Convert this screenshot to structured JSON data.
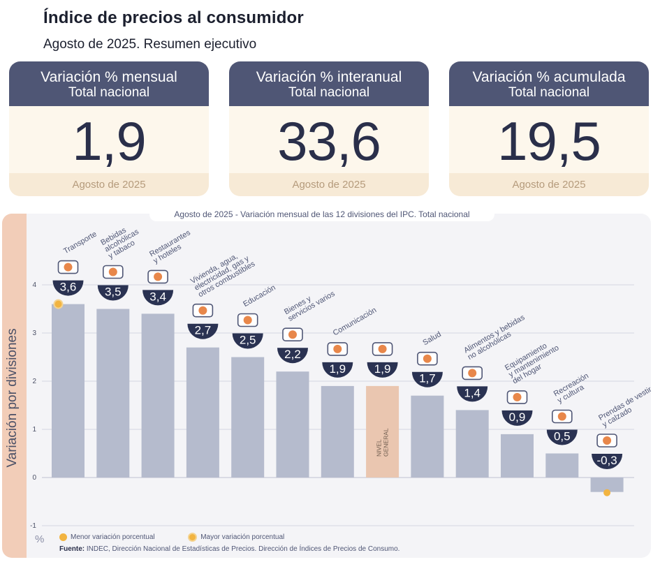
{
  "header": {
    "title": "Índice de precios al consumidor",
    "subtitle": "Agosto de 2025. Resumen ejecutivo"
  },
  "cards": [
    {
      "title": "Variación % mensual",
      "subtitle": "Total nacional",
      "value": "1,9",
      "footer": "Agosto de 2025"
    },
    {
      "title": "Variación % interanual",
      "subtitle": "Total nacional",
      "value": "33,6",
      "footer": "Agosto de 2025"
    },
    {
      "title": "Variación % acumulada",
      "subtitle": "Total nacional",
      "value": "19,5",
      "footer": "Agosto de 2025"
    }
  ],
  "colors": {
    "bar": "#b5bbcd",
    "highlight_bar": "#eac6b0",
    "badge": "#2a3252",
    "dot": "#f2b441",
    "grid": "#c9ccd8",
    "icon": "#e8874a"
  },
  "legend": {
    "min_label": "Menor variación porcentual",
    "max_label": "Mayor variación porcentual"
  },
  "footer": {
    "percent_symbol": "%",
    "source_label": "Fuente:",
    "source_text": "INDEC, Dirección Nacional de Estadísticas de Precios. Dirección de Índices de Precios de Consumo."
  },
  "chart_data": {
    "type": "bar",
    "title": "Agosto de 2025 - Variación mensual de las 12 divisiones del IPC. Total nacional",
    "ylabel": "Variación por divisiones",
    "xlabel": "",
    "ylim": [
      -1,
      4
    ],
    "yticks": [
      -1,
      0,
      1,
      2,
      3,
      4
    ],
    "grid": true,
    "categories": [
      [
        "Transporte"
      ],
      [
        "Bebidas",
        "alcohólicas",
        "y tabaco"
      ],
      [
        "Restaurantes",
        "y hoteles"
      ],
      [
        "Vivienda, agua,",
        "electricidad, gas y",
        "otros combustibles"
      ],
      [
        "Educación"
      ],
      [
        "Bienes y",
        "servicios varios"
      ],
      [
        "Comunicación"
      ],
      [],
      [
        "Salud"
      ],
      [
        "Alimentos y bebidas",
        "no alcohólicas"
      ],
      [
        "Equipamiento",
        "y mantenimiento",
        "del hogar"
      ],
      [
        "Recreación",
        "y cultura"
      ],
      [
        "Prendas de vestir",
        "y calzado"
      ]
    ],
    "values": [
      3.6,
      3.5,
      3.4,
      2.7,
      2.5,
      2.2,
      1.9,
      1.9,
      1.7,
      1.4,
      0.9,
      0.5,
      -0.3
    ],
    "value_labels": [
      "3,6",
      "3,5",
      "3,4",
      "2,7",
      "2,5",
      "2,2",
      "1,9",
      "1,9",
      "1,7",
      "1,4",
      "0,9",
      "0,5",
      "-0,3"
    ],
    "icons": [
      "bus-card-icon",
      "bottle-glass-icon",
      "plate-cutlery-icon",
      "lightbulb-plug-icon",
      "book-icon",
      "comb-scissors-icon",
      "phone-icon",
      "shopping-basket-icon",
      "medical-cross-icon",
      "food-icon",
      "stove-icon",
      "umbrella-sun-icon",
      "tshirt-icon"
    ],
    "highlight_label": [
      "NIVEL",
      "GENERAL"
    ],
    "highlight_index": 7,
    "max_index": 0,
    "min_index": 12
  }
}
